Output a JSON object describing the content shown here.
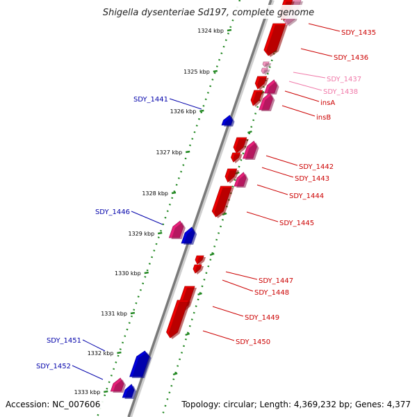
{
  "title": "Shigella dysenteriae Sd197, complete genome",
  "footer": {
    "accession": "Accession: NC_007606",
    "summary": "Topology: circular; Length: 4,369,232 bp; Genes: 4,377"
  },
  "colors": {
    "gene_red": "#ee0000",
    "gene_pink": "#e8207a",
    "gene_light_pink": "#f596c0",
    "gene_blue": "#0000dd",
    "dotted_track": "#228822",
    "backbone": "#7a7a7a",
    "label_red": "#cc0000",
    "label_light": "#f078a8",
    "label_blue": "#0000aa"
  },
  "scale_ticks": [
    {
      "label": "1324 kbp"
    },
    {
      "label": "1325 kbp"
    },
    {
      "label": "1326 kbp"
    },
    {
      "label": "1327 kbp"
    },
    {
      "label": "1328 kbp"
    },
    {
      "label": "1329 kbp"
    },
    {
      "label": "1330 kbp"
    },
    {
      "label": "1331 kbp"
    },
    {
      "label": "1332 kbp"
    },
    {
      "label": "1333 kbp"
    }
  ],
  "genes": [
    {
      "label": "SDY_1435",
      "side": "right",
      "strand": "+",
      "color": "red"
    },
    {
      "label": "SDY_1436",
      "side": "right",
      "strand": "+",
      "color": "red"
    },
    {
      "label": "SDY_1437",
      "side": "right",
      "strand": "+",
      "color": "light"
    },
    {
      "label": "SDY_1438",
      "side": "right",
      "strand": "+",
      "color": "light"
    },
    {
      "label": "insA",
      "side": "right",
      "strand": "+",
      "color": "red"
    },
    {
      "label": "insB",
      "side": "right",
      "strand": "+",
      "color": "red"
    },
    {
      "label": "SDY_1441",
      "side": "left",
      "strand": "-",
      "color": "blue"
    },
    {
      "label": "SDY_1442",
      "side": "right",
      "strand": "+",
      "color": "red"
    },
    {
      "label": "SDY_1443",
      "side": "right",
      "strand": "+",
      "color": "red"
    },
    {
      "label": "SDY_1444",
      "side": "right",
      "strand": "+",
      "color": "red"
    },
    {
      "label": "SDY_1445",
      "side": "right",
      "strand": "+",
      "color": "red"
    },
    {
      "label": "SDY_1446",
      "side": "left",
      "strand": "-",
      "color": "blue"
    },
    {
      "label": "SDY_1447",
      "side": "right",
      "strand": "+",
      "color": "red"
    },
    {
      "label": "SDY_1448",
      "side": "right",
      "strand": "+",
      "color": "red"
    },
    {
      "label": "SDY_1449",
      "side": "right",
      "strand": "+",
      "color": "red"
    },
    {
      "label": "SDY_1450",
      "side": "right",
      "strand": "+",
      "color": "red"
    },
    {
      "label": "SDY_1451",
      "side": "left",
      "strand": "-",
      "color": "blue"
    },
    {
      "label": "SDY_1452",
      "side": "left",
      "strand": "-",
      "color": "blue"
    }
  ]
}
